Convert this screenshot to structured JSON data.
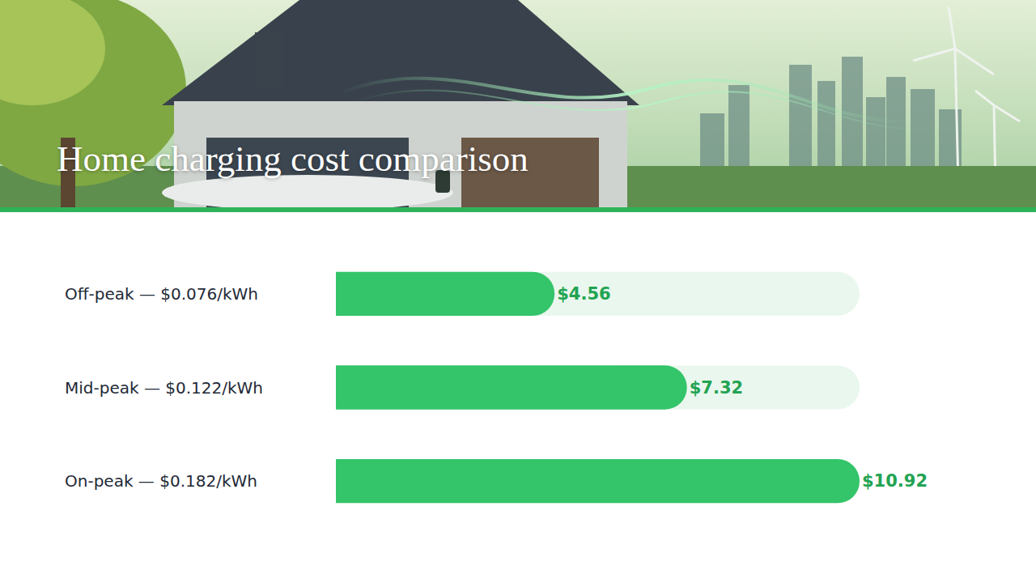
{
  "chart_data": {
    "type": "bar",
    "orientation": "horizontal",
    "title": "Home charging cost comparison",
    "categories": [
      "Off-peak — $0.076/kWh",
      "Mid-peak — $0.122/kWh",
      "On-peak — $0.182/kWh"
    ],
    "values": [
      4.56,
      7.32,
      10.92
    ],
    "value_labels": [
      "$4.56",
      "$7.32",
      "$10.92"
    ],
    "color": "#34c46a",
    "xlim": [
      0,
      10.92
    ],
    "grid": false,
    "data_labels": true,
    "tick_labels": "y"
  }
}
